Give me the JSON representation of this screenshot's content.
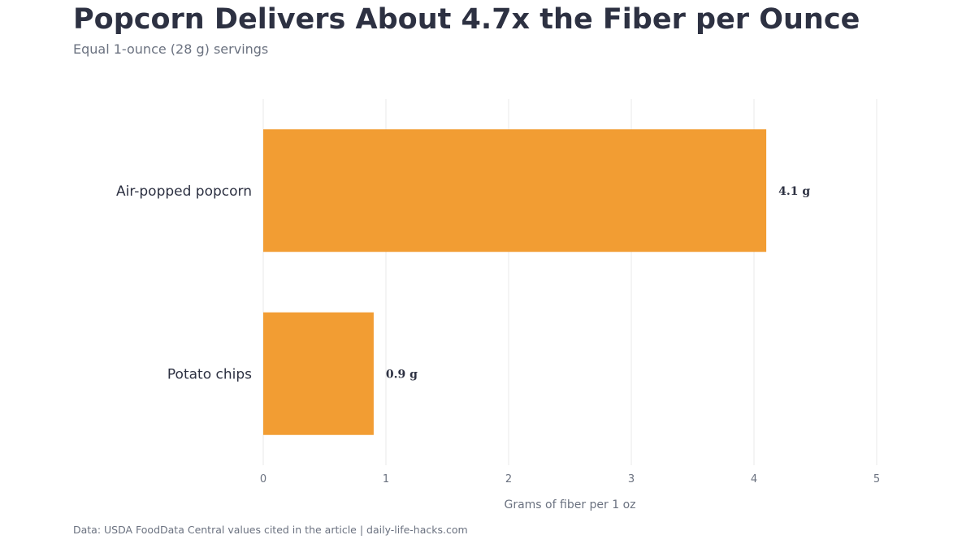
{
  "header": {
    "title": "Popcorn Delivers About 4.7x the Fiber per Ounce",
    "subtitle": "Equal 1-ounce (28 g) servings"
  },
  "footer": {
    "source": "Data: USDA FoodData Central values cited in the article | daily-life-hacks.com"
  },
  "chart_data": {
    "type": "bar",
    "orientation": "horizontal",
    "title": "Popcorn Delivers About 4.7x the Fiber per Ounce",
    "subtitle": "Equal 1-ounce (28 g) servings",
    "categories": [
      "Air-popped popcorn",
      "Potato chips"
    ],
    "values": [
      4.1,
      0.9
    ],
    "value_labels": [
      "4.1 g",
      "0.9 g"
    ],
    "xlabel": "Grams of fiber per 1 oz",
    "ylabel": "",
    "xlim": [
      0,
      5
    ],
    "xticks": [
      "0",
      "1",
      "2",
      "3",
      "4",
      "5"
    ],
    "grid": "vertical",
    "legend": "none",
    "bar_color": "#f29d33"
  }
}
